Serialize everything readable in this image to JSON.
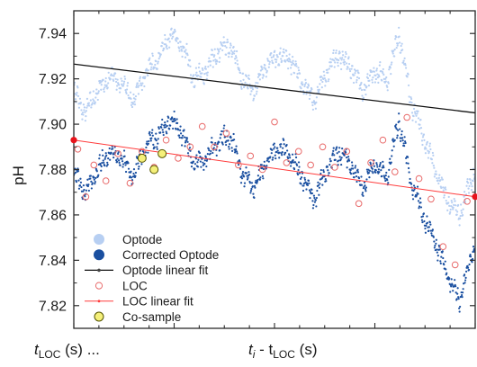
{
  "chart_data": {
    "type": "scatter",
    "ylabel": "pH",
    "xlabel_left": {
      "main": "t",
      "sub": "LOC",
      "rest": " (s) ..."
    },
    "xlabel_center": {
      "main": "t",
      "sub1": "i",
      "mid": " - t",
      "sub2": "LOC",
      "rest": " (s)"
    },
    "y_ticks": [
      "7.82",
      "7.84",
      "7.86",
      "7.88",
      "7.90",
      "7.92",
      "7.94"
    ],
    "ylim": [
      7.81,
      7.95
    ],
    "xlim": [
      0,
      100
    ],
    "grid": false,
    "legend_position": "bottom-left",
    "colors": {
      "optode": "#b7cff2",
      "corrected": "#1a4fa0",
      "optode_fit": "#111111",
      "loc": "#e86a6a",
      "loc_fit": "#ff3b3b",
      "cosample_fill": "#f5f07a",
      "cosample_edge": "#555500",
      "endpoint": "#e8141c"
    },
    "legend": [
      {
        "key": "optode",
        "label": "Optode"
      },
      {
        "key": "corrected",
        "label": "Corrected Optode"
      },
      {
        "key": "optode_fit",
        "label": "Optode linear fit"
      },
      {
        "key": "loc",
        "label": "LOC"
      },
      {
        "key": "loc_fit",
        "label": "LOC linear fit"
      },
      {
        "key": "cosample",
        "label": "Co-sample"
      }
    ],
    "series": [
      {
        "name": "Optode",
        "style": "dense-points",
        "x": [
          0,
          3,
          6,
          9,
          12,
          15,
          18,
          21,
          24,
          27,
          30,
          33,
          36,
          39,
          42,
          45,
          48,
          51,
          54,
          57,
          60,
          63,
          66,
          69,
          72,
          75,
          78,
          81,
          84,
          87,
          90,
          93,
          96,
          100
        ],
        "y": [
          7.914,
          7.905,
          7.915,
          7.921,
          7.918,
          7.91,
          7.924,
          7.928,
          7.94,
          7.935,
          7.92,
          7.924,
          7.932,
          7.935,
          7.92,
          7.915,
          7.926,
          7.931,
          7.928,
          7.918,
          7.91,
          7.923,
          7.93,
          7.925,
          7.915,
          7.924,
          7.919,
          7.94,
          7.91,
          7.895,
          7.88,
          7.867,
          7.86,
          7.88
        ]
      },
      {
        "name": "Corrected Optode",
        "style": "dense-points",
        "x": [
          0,
          3,
          6,
          9,
          12,
          15,
          18,
          21,
          24,
          27,
          30,
          33,
          36,
          39,
          42,
          45,
          48,
          51,
          54,
          57,
          60,
          63,
          66,
          69,
          72,
          75,
          78,
          81,
          84,
          87,
          90,
          93,
          96,
          100
        ],
        "y": [
          7.878,
          7.87,
          7.88,
          7.888,
          7.884,
          7.877,
          7.89,
          7.895,
          7.902,
          7.896,
          7.882,
          7.885,
          7.892,
          7.895,
          7.878,
          7.872,
          7.884,
          7.89,
          7.886,
          7.876,
          7.867,
          7.88,
          7.888,
          7.882,
          7.872,
          7.883,
          7.876,
          7.902,
          7.875,
          7.86,
          7.848,
          7.834,
          7.822,
          7.847
        ]
      },
      {
        "name": "Optode linear fit",
        "style": "line",
        "x": [
          0,
          100
        ],
        "y": [
          7.9265,
          7.905
        ]
      },
      {
        "name": "LOC",
        "style": "open-circles",
        "x": [
          1,
          3,
          5,
          8,
          11,
          14,
          17,
          20,
          23,
          26,
          29,
          32,
          35,
          38,
          41,
          44,
          47,
          50,
          53,
          56,
          59,
          62,
          65,
          68,
          71,
          74,
          77,
          80,
          83,
          86,
          89,
          92,
          95,
          98
        ],
        "y": [
          7.889,
          7.868,
          7.882,
          7.875,
          7.887,
          7.874,
          7.888,
          7.881,
          7.893,
          7.885,
          7.89,
          7.899,
          7.89,
          7.896,
          7.882,
          7.886,
          7.88,
          7.901,
          7.883,
          7.888,
          7.882,
          7.89,
          7.881,
          7.888,
          7.865,
          7.883,
          7.893,
          7.879,
          7.903,
          7.876,
          7.867,
          7.846,
          7.838,
          7.866
        ]
      },
      {
        "name": "LOC linear fit",
        "style": "line",
        "x": [
          0,
          100
        ],
        "y": [
          7.893,
          7.868
        ]
      },
      {
        "name": "Co-sample",
        "style": "filled-circles",
        "x": [
          17,
          20,
          22
        ],
        "y": [
          7.885,
          7.88,
          7.887
        ]
      }
    ],
    "endpoints": {
      "x": [
        0,
        100
      ],
      "y": [
        7.893,
        7.868
      ]
    }
  }
}
